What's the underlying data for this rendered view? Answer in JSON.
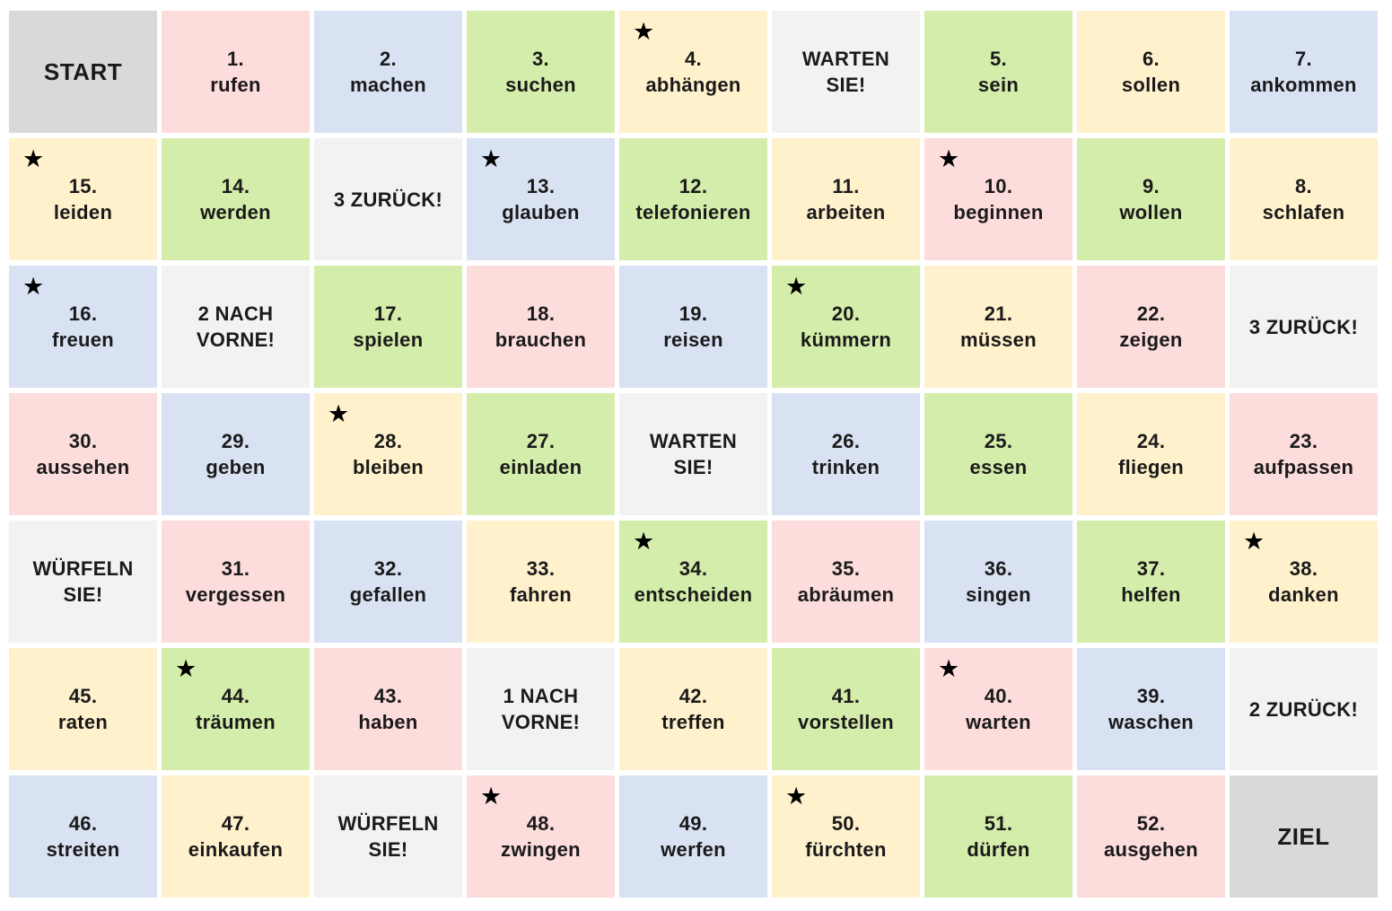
{
  "colors": {
    "pink": "#fddcdc",
    "blue": "#d9e2f3",
    "green": "#d4edaa",
    "yellow": "#fff1cc",
    "gray": "#f2f2f2",
    "dark_gray": "#d9d9d9"
  },
  "star_icon": "black-star-icon",
  "star_glyph": "★",
  "rows": [
    [
      {
        "lines": [
          "START"
        ],
        "color": "dark_gray",
        "big": true
      },
      {
        "lines": [
          "1.",
          "rufen"
        ],
        "color": "pink"
      },
      {
        "lines": [
          "2.",
          "machen"
        ],
        "color": "blue"
      },
      {
        "lines": [
          "3.",
          "suchen"
        ],
        "color": "green"
      },
      {
        "lines": [
          "4.",
          "abhängen"
        ],
        "color": "yellow",
        "star": true
      },
      {
        "lines": [
          "WARTEN",
          "SIE!"
        ],
        "color": "gray"
      },
      {
        "lines": [
          "5.",
          "sein"
        ],
        "color": "green"
      },
      {
        "lines": [
          "6.",
          "sollen"
        ],
        "color": "yellow"
      },
      {
        "lines": [
          "7.",
          "ankommen"
        ],
        "color": "blue"
      }
    ],
    [
      {
        "lines": [
          "15.",
          "leiden"
        ],
        "color": "yellow",
        "star": true
      },
      {
        "lines": [
          "14.",
          "werden"
        ],
        "color": "green"
      },
      {
        "lines": [
          "3 ZURÜCK!"
        ],
        "color": "gray"
      },
      {
        "lines": [
          "13.",
          "glauben"
        ],
        "color": "blue",
        "star": true
      },
      {
        "lines": [
          "12.",
          "telefonieren"
        ],
        "color": "green"
      },
      {
        "lines": [
          "11.",
          "arbeiten"
        ],
        "color": "yellow"
      },
      {
        "lines": [
          "10.",
          "beginnen"
        ],
        "color": "pink",
        "star": true
      },
      {
        "lines": [
          "9.",
          "wollen"
        ],
        "color": "green"
      },
      {
        "lines": [
          "8.",
          "schlafen"
        ],
        "color": "yellow"
      }
    ],
    [
      {
        "lines": [
          "16.",
          "freuen"
        ],
        "color": "blue",
        "star": true
      },
      {
        "lines": [
          "2 NACH",
          "VORNE!"
        ],
        "color": "gray"
      },
      {
        "lines": [
          "17.",
          "spielen"
        ],
        "color": "green"
      },
      {
        "lines": [
          "18.",
          "brauchen"
        ],
        "color": "pink"
      },
      {
        "lines": [
          "19.",
          "reisen"
        ],
        "color": "blue"
      },
      {
        "lines": [
          "20.",
          "kümmern"
        ],
        "color": "green",
        "star": true
      },
      {
        "lines": [
          "21.",
          "müssen"
        ],
        "color": "yellow"
      },
      {
        "lines": [
          "22.",
          "zeigen"
        ],
        "color": "pink"
      },
      {
        "lines": [
          "3 ZURÜCK!"
        ],
        "color": "gray"
      }
    ],
    [
      {
        "lines": [
          "30.",
          "aussehen"
        ],
        "color": "pink"
      },
      {
        "lines": [
          "29.",
          "geben"
        ],
        "color": "blue"
      },
      {
        "lines": [
          "28.",
          "bleiben"
        ],
        "color": "yellow",
        "star": true
      },
      {
        "lines": [
          "27.",
          "einladen"
        ],
        "color": "green"
      },
      {
        "lines": [
          "WARTEN",
          "SIE!"
        ],
        "color": "gray"
      },
      {
        "lines": [
          "26.",
          "trinken"
        ],
        "color": "blue"
      },
      {
        "lines": [
          "25.",
          "essen"
        ],
        "color": "green"
      },
      {
        "lines": [
          "24.",
          "fliegen"
        ],
        "color": "yellow"
      },
      {
        "lines": [
          "23.",
          "aufpassen"
        ],
        "color": "pink"
      }
    ],
    [
      {
        "lines": [
          "WÜRFELN",
          "SIE!"
        ],
        "color": "gray"
      },
      {
        "lines": [
          "31.",
          "vergessen"
        ],
        "color": "pink"
      },
      {
        "lines": [
          "32.",
          "gefallen"
        ],
        "color": "blue"
      },
      {
        "lines": [
          "33.",
          "fahren"
        ],
        "color": "yellow"
      },
      {
        "lines": [
          "34.",
          "entscheiden"
        ],
        "color": "green",
        "star": true
      },
      {
        "lines": [
          "35.",
          "abräumen"
        ],
        "color": "pink"
      },
      {
        "lines": [
          "36.",
          "singen"
        ],
        "color": "blue"
      },
      {
        "lines": [
          "37.",
          "helfen"
        ],
        "color": "green"
      },
      {
        "lines": [
          "38.",
          "danken"
        ],
        "color": "yellow",
        "star": true
      }
    ],
    [
      {
        "lines": [
          "45.",
          "raten"
        ],
        "color": "yellow"
      },
      {
        "lines": [
          "44.",
          "träumen"
        ],
        "color": "green",
        "star": true
      },
      {
        "lines": [
          "43.",
          "haben"
        ],
        "color": "pink"
      },
      {
        "lines": [
          "1 NACH",
          "VORNE!"
        ],
        "color": "gray"
      },
      {
        "lines": [
          "42.",
          "treffen"
        ],
        "color": "yellow"
      },
      {
        "lines": [
          "41.",
          "vorstellen"
        ],
        "color": "green"
      },
      {
        "lines": [
          "40.",
          "warten"
        ],
        "color": "pink",
        "star": true
      },
      {
        "lines": [
          "39.",
          "waschen"
        ],
        "color": "blue"
      },
      {
        "lines": [
          "2 ZURÜCK!"
        ],
        "color": "gray"
      }
    ],
    [
      {
        "lines": [
          "46.",
          "streiten"
        ],
        "color": "blue"
      },
      {
        "lines": [
          "47.",
          "einkaufen"
        ],
        "color": "yellow"
      },
      {
        "lines": [
          "WÜRFELN",
          "SIE!"
        ],
        "color": "gray"
      },
      {
        "lines": [
          "48.",
          "zwingen"
        ],
        "color": "pink",
        "star": true
      },
      {
        "lines": [
          "49.",
          "werfen"
        ],
        "color": "blue"
      },
      {
        "lines": [
          "50.",
          "fürchten"
        ],
        "color": "yellow",
        "star": true
      },
      {
        "lines": [
          "51.",
          "dürfen"
        ],
        "color": "green"
      },
      {
        "lines": [
          "52.",
          "ausgehen"
        ],
        "color": "pink"
      },
      {
        "lines": [
          "ZIEL"
        ],
        "color": "dark_gray",
        "big": true
      }
    ]
  ]
}
